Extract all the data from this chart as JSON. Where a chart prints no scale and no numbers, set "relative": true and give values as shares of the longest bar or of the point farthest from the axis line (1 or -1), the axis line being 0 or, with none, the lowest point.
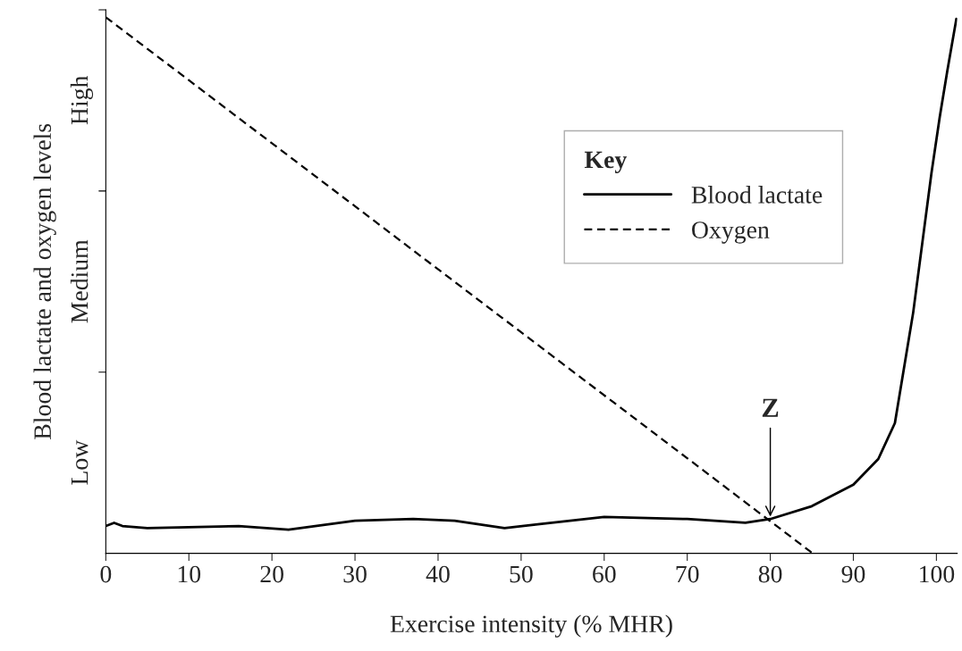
{
  "chart_data": {
    "type": "line",
    "relative": true,
    "xlabel": "Exercise intensity (% MHR)",
    "ylabel": "Blood lactate and oxygen levels",
    "xlim": [
      0,
      102.5
    ],
    "xticks": [
      0,
      10,
      20,
      30,
      40,
      50,
      60,
      70,
      80,
      90,
      100
    ],
    "legend": "top right",
    "legend_title": "Key",
    "series": [
      {
        "name": "Blood lactate",
        "color": "#000000",
        "line_style": "solid",
        "x": [
          0,
          1,
          2,
          5,
          16,
          22,
          30,
          37,
          42,
          48,
          52,
          60,
          70,
          77,
          80,
          85,
          90,
          93,
          95,
          97.2,
          99.4,
          100.4,
          101.3,
          102.4
        ],
        "values": [
          0.051,
          0.057,
          0.051,
          0.047,
          0.051,
          0.044,
          0.061,
          0.064,
          0.061,
          0.047,
          0.054,
          0.068,
          0.064,
          0.057,
          0.064,
          0.088,
          0.128,
          0.176,
          0.243,
          0.449,
          0.709,
          0.814,
          0.899,
          0.997
        ]
      },
      {
        "name": "Oxygen",
        "color": "#000000",
        "line_style": "dashed",
        "x": [
          0,
          85.1
        ],
        "values": [
          1,
          0
        ]
      }
    ],
    "annotations": [
      "Low",
      "Medium",
      "High",
      {
        "text": "Z",
        "x": 80,
        "y": 0.064
      }
    ]
  }
}
